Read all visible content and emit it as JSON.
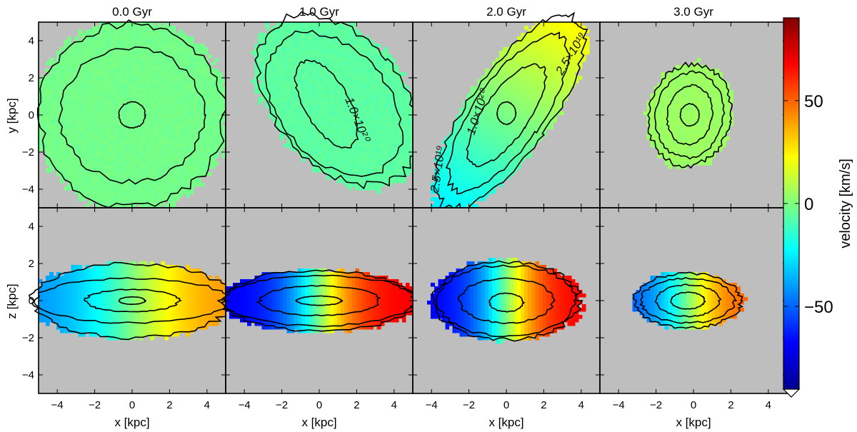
{
  "chart_data": {
    "type": "heatmap",
    "columns": [
      "0.0 Gyr",
      "1.0 Gyr",
      "2.0 Gyr",
      "3.0 Gyr"
    ],
    "rows": [
      {
        "ylabel": "y [kpc]",
        "panels": [
          {
            "title": "0.0 Gyr",
            "blob": {
              "cx": 0,
              "cy": 0,
              "rx": 5.2,
              "ry": 5.2,
              "angle": 0
            },
            "velocity": {
              "mode": "flat",
              "value": -2
            },
            "contours": [
              {
                "rx": 3.8,
                "ry": 3.6,
                "angle": 0,
                "cx": 0,
                "cy": 0
              },
              {
                "rx": 0.7,
                "ry": 0.7,
                "angle": 0,
                "cx": 0,
                "cy": 0
              }
            ]
          },
          {
            "title": "1.0 Gyr",
            "blob": {
              "cx": 1.0,
              "cy": 0.8,
              "rx": 3.6,
              "ry": 5.5,
              "angle": 40
            },
            "velocity": {
              "mode": "flat",
              "value": -6
            },
            "contours": [
              {
                "rx": 2.9,
                "ry": 4.4,
                "angle": 40,
                "cx": 0.8,
                "cy": 0.6
              },
              {
                "rx": 1.2,
                "ry": 2.6,
                "angle": 30,
                "cx": 0.4,
                "cy": 0.6
              }
            ]
          },
          {
            "title": "2.0 Gyr",
            "blob": {
              "cx": 0.2,
              "cy": 0.2,
              "rx": 2.3,
              "ry": 6.5,
              "angle": -35
            },
            "velocity": {
              "mode": "gradient",
              "amplitude": 16,
              "direction": [
                0.55,
                0.83
              ]
            },
            "contours": [
              {
                "rx": 1.8,
                "ry": 5.0,
                "angle": -35,
                "cx": 0.1,
                "cy": 0.1
              },
              {
                "rx": 1.2,
                "ry": 3.2,
                "angle": -35,
                "cx": 0,
                "cy": 0
              },
              {
                "rx": 0.5,
                "ry": 0.6,
                "angle": 0,
                "cx": 0,
                "cy": 0.1
              }
            ]
          },
          {
            "title": "3.0 Gyr",
            "blob": {
              "cx": -0.2,
              "cy": 0,
              "rx": 2.3,
              "ry": 2.9,
              "angle": -10
            },
            "velocity": {
              "mode": "flat",
              "value": 5
            },
            "contours": [
              {
                "rx": 1.8,
                "ry": 2.3,
                "angle": -10,
                "cx": -0.2,
                "cy": 0
              },
              {
                "rx": 1.2,
                "ry": 1.6,
                "angle": -10,
                "cx": -0.2,
                "cy": 0
              },
              {
                "rx": 0.5,
                "ry": 0.6,
                "angle": 0,
                "cx": -0.2,
                "cy": 0
              }
            ]
          }
        ]
      },
      {
        "ylabel": "z [kpc]",
        "panels": [
          {
            "title": "0.0 Gyr",
            "blob": {
              "cx": 0,
              "cy": 0,
              "rx": 5.6,
              "ry": 2.1,
              "angle": 0
            },
            "velocity": {
              "mode": "rotation",
              "amplitude": 45,
              "scale": 3.5
            },
            "contours": [
              {
                "rx": 5.2,
                "ry": 1.2,
                "angle": 0,
                "cx": 0,
                "cy": 0
              },
              {
                "rx": 2.5,
                "ry": 0.6,
                "angle": 0,
                "cx": 0,
                "cy": 0
              },
              {
                "rx": 0.7,
                "ry": 0.2,
                "angle": 0,
                "cx": 0,
                "cy": 0
              }
            ]
          },
          {
            "title": "1.0 Gyr",
            "blob": {
              "cx": 0,
              "cy": 0,
              "rx": 5.4,
              "ry": 1.7,
              "angle": 0
            },
            "velocity": {
              "mode": "rotation",
              "amplitude": 70,
              "scale": 2.2
            },
            "contours": [
              {
                "rx": 5.2,
                "ry": 1.35,
                "angle": 0,
                "cx": 0,
                "cy": 0
              },
              {
                "rx": 3.2,
                "ry": 0.8,
                "angle": 0,
                "cx": 0,
                "cy": 0
              },
              {
                "rx": 1.2,
                "ry": 0.25,
                "angle": 0,
                "cx": 0,
                "cy": 0
              }
            ]
          },
          {
            "title": "2.0 Gyr",
            "blob": {
              "cx": 0,
              "cy": 0,
              "rx": 4.1,
              "ry": 2.2,
              "angle": 0
            },
            "velocity": {
              "mode": "rotation",
              "amplitude": 70,
              "scale": 2.0
            },
            "contours": [
              {
                "rx": 3.7,
                "ry": 1.9,
                "angle": 0,
                "cx": 0,
                "cy": 0
              },
              {
                "rx": 2.5,
                "ry": 1.2,
                "angle": 0,
                "cx": 0,
                "cy": 0
              },
              {
                "rx": 0.9,
                "ry": 0.5,
                "angle": 0,
                "cx": 0,
                "cy": -0.1
              }
            ]
          },
          {
            "title": "3.0 Gyr",
            "blob": {
              "cx": -0.3,
              "cy": 0,
              "rx": 3.0,
              "ry": 1.55,
              "angle": 0
            },
            "velocity": {
              "mode": "rotation",
              "amplitude": 55,
              "scale": 2.0
            },
            "contours": [
              {
                "rx": 2.5,
                "ry": 1.2,
                "angle": 0,
                "cx": -0.3,
                "cy": 0
              },
              {
                "rx": 1.7,
                "ry": 0.85,
                "angle": 0,
                "cx": -0.3,
                "cy": 0
              },
              {
                "rx": 0.9,
                "ry": 0.45,
                "angle": 0,
                "cx": -0.3,
                "cy": 0
              }
            ]
          }
        ]
      }
    ],
    "xlabel": "x [kpc]",
    "xlim": [
      -5,
      5
    ],
    "ylim": [
      -5,
      5
    ],
    "xticks": [
      -4,
      -2,
      0,
      2,
      4
    ],
    "yticks": [
      -4,
      -2,
      0,
      2,
      4
    ],
    "contour_labels": [
      "1.0×10²⁰",
      "2.5×10¹⁹",
      "1.0×10²⁰",
      "2.5×10¹⁹"
    ],
    "colorbar": {
      "label": "velocity [km/s]",
      "range": [
        -90,
        90
      ],
      "ticks": [
        -50,
        0,
        50
      ],
      "tick_labels": [
        "−50",
        "0",
        "50"
      ]
    },
    "background_color": "#bebebe",
    "colormap": "jet"
  }
}
